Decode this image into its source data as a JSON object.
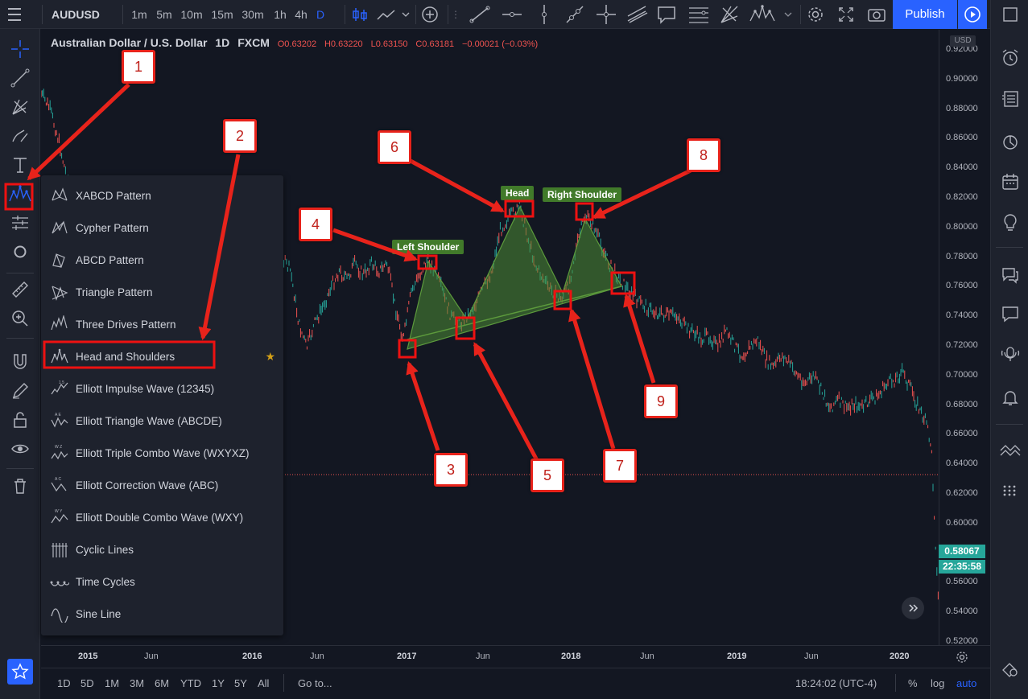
{
  "toolbar": {
    "symbol": "AUDUSD",
    "intervals": [
      "1m",
      "5m",
      "10m",
      "15m",
      "30m",
      "1h",
      "4h",
      "D"
    ],
    "active_interval": "D",
    "publish_label": "Publish"
  },
  "legend": {
    "title": "Australian Dollar / U.S. Dollar",
    "interval": "1D",
    "exchange": "FXCM",
    "open": "O0.63202",
    "high": "H0.63220",
    "low": "L0.63150",
    "close": "C0.63181",
    "change": "−0.00021 (−0.03%)"
  },
  "price_axis": {
    "currency": "USD",
    "ticks": [
      "0.92000",
      "0.90000",
      "0.88000",
      "0.86000",
      "0.84000",
      "0.82000",
      "0.80000",
      "0.78000",
      "0.76000",
      "0.74000",
      "0.72000",
      "0.70000",
      "0.68000",
      "0.66000",
      "0.64000",
      "0.62000",
      "0.60000",
      "0.58000",
      "0.56000",
      "0.54000",
      "0.52000"
    ],
    "current_price": "0.58067",
    "countdown": "22:35:58"
  },
  "time_axis": {
    "ticks": [
      {
        "label": "2015",
        "bold": true
      },
      {
        "label": "Jun",
        "bold": false
      },
      {
        "label": "2016",
        "bold": true
      },
      {
        "label": "Jun",
        "bold": false
      },
      {
        "label": "2017",
        "bold": true
      },
      {
        "label": "Jun",
        "bold": false
      },
      {
        "label": "2018",
        "bold": true
      },
      {
        "label": "Jun",
        "bold": false
      },
      {
        "label": "2019",
        "bold": true
      },
      {
        "label": "Jun",
        "bold": false
      },
      {
        "label": "2020",
        "bold": true
      }
    ]
  },
  "bottom_bar": {
    "ranges": [
      "1D",
      "5D",
      "1M",
      "3M",
      "6M",
      "YTD",
      "1Y",
      "5Y",
      "All"
    ],
    "goto": "Go to...",
    "clock": "18:24:02 (UTC-4)",
    "percent": "%",
    "log": "log",
    "auto": "auto"
  },
  "pattern_menu": {
    "items": [
      {
        "label": "XABCD Pattern",
        "icon": "xabcd-pattern-icon"
      },
      {
        "label": "Cypher Pattern",
        "icon": "cypher-pattern-icon"
      },
      {
        "label": "ABCD Pattern",
        "icon": "abcd-pattern-icon"
      },
      {
        "label": "Triangle Pattern",
        "icon": "triangle-pattern-icon"
      },
      {
        "label": "Three Drives Pattern",
        "icon": "three-drives-pattern-icon"
      },
      {
        "label": "Head and Shoulders",
        "icon": "head-and-shoulders-icon",
        "selected": true,
        "favorite": true
      },
      {
        "label": "Elliott Impulse Wave (12345)",
        "icon": "elliott-impulse-icon"
      },
      {
        "label": "Elliott Triangle Wave (ABCDE)",
        "icon": "elliott-triangle-icon"
      },
      {
        "label": "Elliott Triple Combo Wave (WXYXZ)",
        "icon": "elliott-triple-combo-icon"
      },
      {
        "label": "Elliott Correction Wave (ABC)",
        "icon": "elliott-correction-icon"
      },
      {
        "label": "Elliott Double Combo Wave (WXY)",
        "icon": "elliott-double-combo-icon"
      },
      {
        "label": "Cyclic Lines",
        "icon": "cyclic-lines-icon"
      },
      {
        "label": "Time Cycles",
        "icon": "time-cycles-icon"
      },
      {
        "label": "Sine Line",
        "icon": "sine-line-icon"
      }
    ]
  },
  "pattern_labels": {
    "left_shoulder": "Left Shoulder",
    "head": "Head",
    "right_shoulder": "Right Shoulder"
  },
  "callouts": [
    "1",
    "2",
    "3",
    "4",
    "5",
    "6",
    "7",
    "8",
    "9"
  ],
  "colors": {
    "background": "#131722",
    "panel": "#1e222d",
    "accent": "#2962ff",
    "up": "#26a69a",
    "down": "#ef5350",
    "pattern_fill": "#3d7a2c",
    "annotation_red": "#e8231b"
  }
}
